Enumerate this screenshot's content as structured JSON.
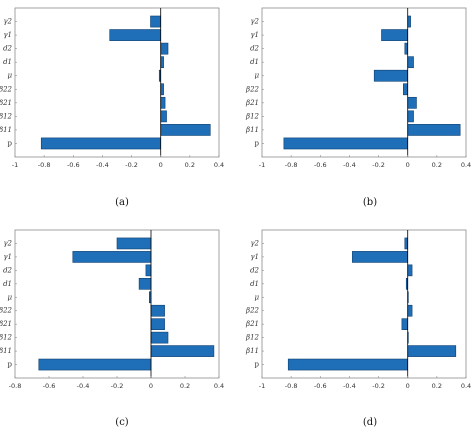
{
  "chart_data": [
    {
      "type": "bar",
      "orientation": "horizontal",
      "panel_label": "(a)",
      "categories": [
        "p",
        "β11",
        "β12",
        "β21",
        "β22",
        "μ",
        "d1",
        "d2",
        "γ1",
        "γ2"
      ],
      "values": [
        -0.82,
        0.34,
        0.04,
        0.03,
        0.02,
        -0.01,
        0.02,
        0.05,
        -0.35,
        -0.07
      ],
      "x_ticks": [
        "-1",
        "-0.8",
        "-0.6",
        "-0.4",
        "-0.2",
        "0",
        "0.2",
        "0.4"
      ],
      "xlim": [
        -1,
        0.4
      ]
    },
    {
      "type": "bar",
      "orientation": "horizontal",
      "panel_label": "(b)",
      "categories": [
        "p",
        "β11",
        "β12",
        "β21",
        "β22",
        "μ",
        "d1",
        "d2",
        "γ1",
        "γ2"
      ],
      "values": [
        -0.85,
        0.36,
        0.04,
        0.06,
        -0.03,
        -0.23,
        0.04,
        -0.02,
        -0.18,
        0.02
      ],
      "x_ticks": [
        "-1",
        "-0.8",
        "-0.6",
        "-0.4",
        "-0.2",
        "0",
        "0.2",
        "0.4"
      ],
      "xlim": [
        -1,
        0.4
      ]
    },
    {
      "type": "bar",
      "orientation": "horizontal",
      "panel_label": "(c)",
      "categories": [
        "p",
        "β11",
        "β12",
        "β21",
        "β22",
        "μ",
        "d1",
        "d2",
        "γ1",
        "γ2"
      ],
      "values": [
        -0.66,
        0.37,
        0.1,
        0.08,
        0.08,
        -0.01,
        -0.07,
        -0.03,
        -0.46,
        -0.2
      ],
      "x_ticks": [
        "-0.8",
        "-0.6",
        "-0.4",
        "-0.2",
        "0",
        "0.2",
        "0.4"
      ],
      "xlim": [
        -0.8,
        0.4
      ]
    },
    {
      "type": "bar",
      "orientation": "horizontal",
      "panel_label": "(d)",
      "categories": [
        "p",
        "β11",
        "β12",
        "β21",
        "β22",
        "μ",
        "d1",
        "d2",
        "γ1",
        "γ2"
      ],
      "values": [
        -0.82,
        0.33,
        0.0,
        -0.04,
        0.03,
        0.0,
        -0.01,
        0.03,
        -0.38,
        -0.02
      ],
      "x_ticks": [
        "-1",
        "-0.8",
        "-0.6",
        "-0.4",
        "-0.2",
        "0",
        "0.2",
        "0.4"
      ],
      "xlim": [
        -1,
        0.4
      ]
    }
  ]
}
